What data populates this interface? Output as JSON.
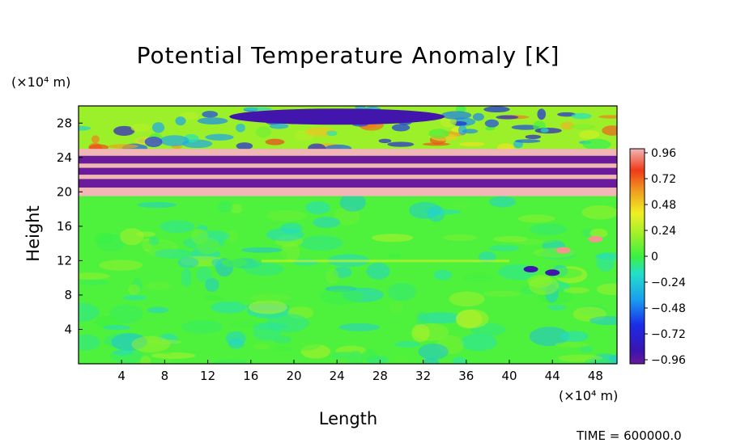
{
  "chart_data": {
    "type": "heatmap",
    "title": "Potential Temperature Anomaly [K]",
    "xlabel": "Length",
    "ylabel": "Height",
    "x_unit": "(×10⁴ m)",
    "y_unit": "(×10⁴ m)",
    "x_ticks": [
      "4",
      "8",
      "12",
      "16",
      "20",
      "24",
      "28",
      "32",
      "36",
      "40",
      "44",
      "48"
    ],
    "y_ticks": [
      "4",
      "8",
      "12",
      "16",
      "20",
      "24",
      "28"
    ],
    "xlim": [
      0,
      50
    ],
    "ylim": [
      0,
      30
    ],
    "colorbar": {
      "ticks": [
        "0.96",
        "0.72",
        "0.48",
        "0.24",
        "0",
        "−0.24",
        "−0.48",
        "−0.72",
        "−0.96"
      ],
      "range": [
        -1.0,
        1.0
      ]
    },
    "bands": [
      {
        "y_range": [
          0,
          19.5
        ],
        "value": 0.0,
        "note": "near-zero background"
      },
      {
        "y_range": [
          19.5,
          20.5
        ],
        "value": 1.0
      },
      {
        "y_range": [
          20.5,
          21.5
        ],
        "value": -1.0
      },
      {
        "y_range": [
          21.5,
          22.0
        ],
        "value": 1.0
      },
      {
        "y_range": [
          22.0,
          22.8
        ],
        "value": -1.0
      },
      {
        "y_range": [
          22.8,
          23.3
        ],
        "value": 1.0
      },
      {
        "y_range": [
          23.3,
          24.2
        ],
        "value": -1.0
      },
      {
        "y_range": [
          24.2,
          25.0
        ],
        "value": 1.0
      },
      {
        "y_range": [
          28.0,
          29.5
        ],
        "value": -0.9
      }
    ],
    "footer": "TIME = 600000.0"
  }
}
